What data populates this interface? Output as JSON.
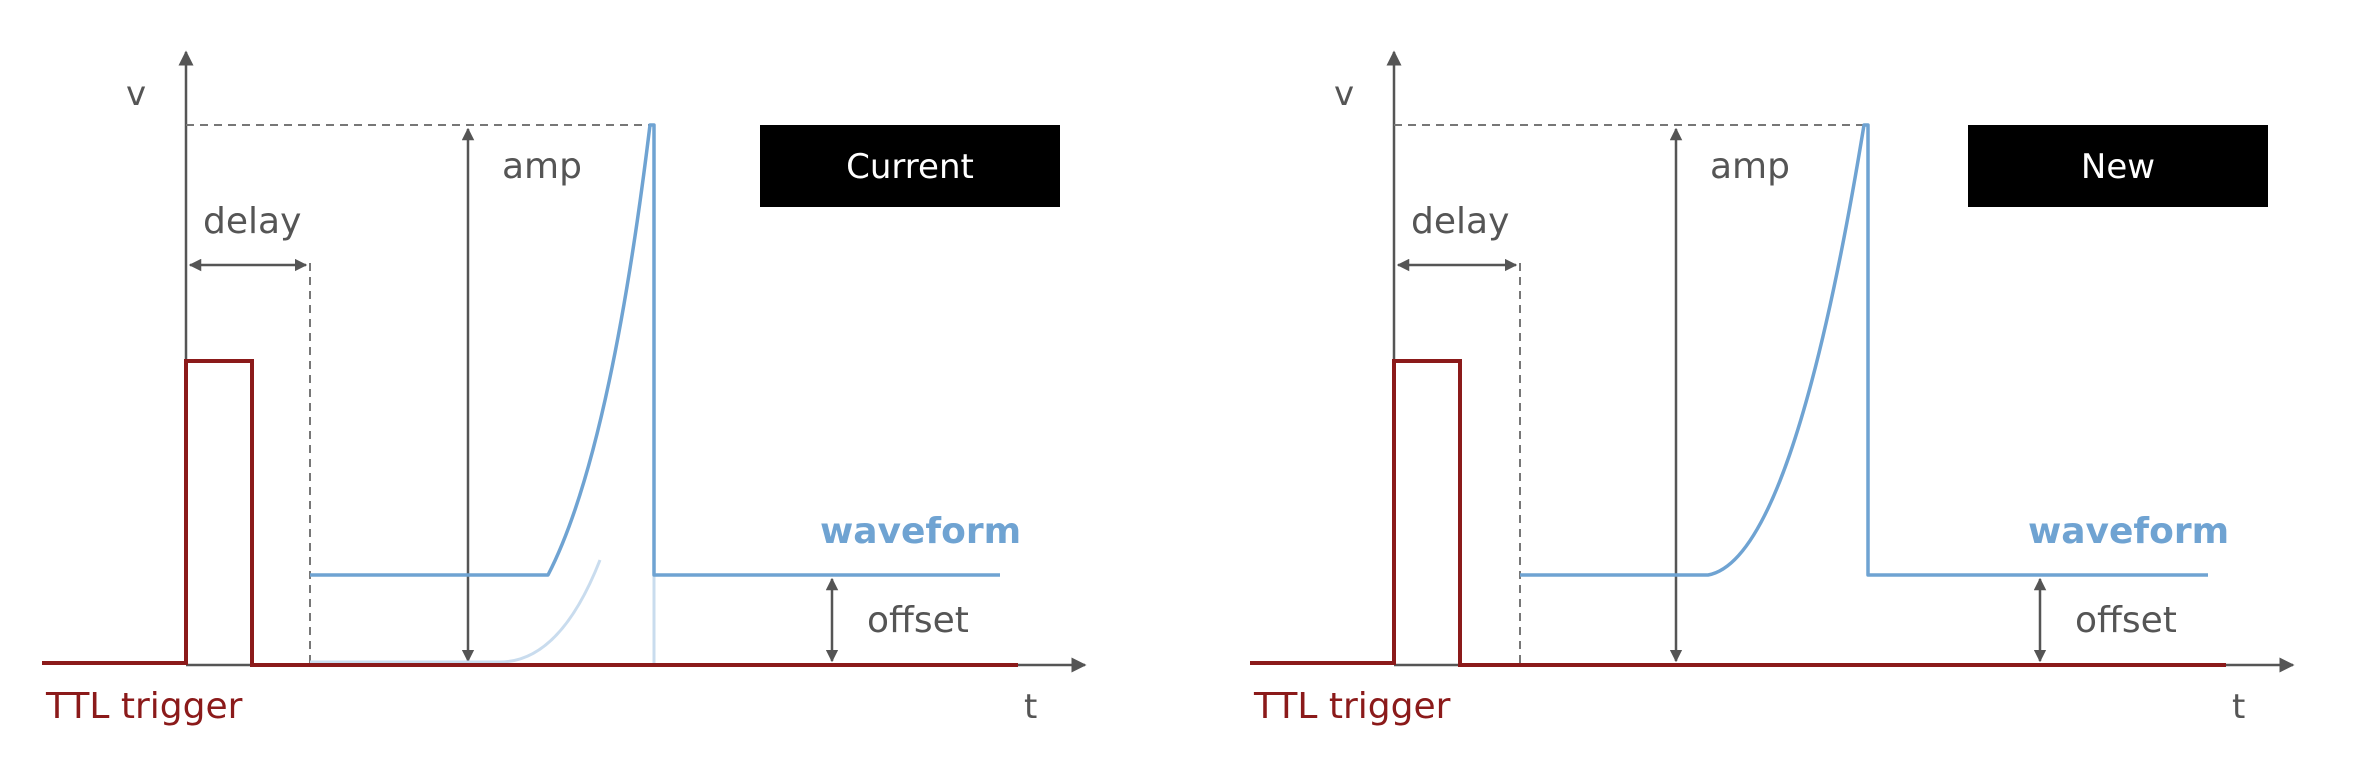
{
  "colors": {
    "axis": "#555555",
    "trigger": "#8b1a1a",
    "waveform": "#6fa3d2",
    "waveform_faded": "#c9dcee",
    "label": "#555555",
    "badge_bg": "#000000",
    "badge_text": "#ffffff"
  },
  "panels": [
    {
      "badge": "Current",
      "axis_y": "v",
      "axis_x": "t",
      "delay_label": "delay",
      "amp_label": "amp",
      "waveform_label": "waveform",
      "offset_label": "offset",
      "trigger_label": "TTL trigger"
    },
    {
      "badge": "New",
      "axis_y": "v",
      "axis_x": "t",
      "delay_label": "delay",
      "amp_label": "amp",
      "waveform_label": "waveform",
      "offset_label": "offset",
      "trigger_label": "TTL trigger"
    }
  ]
}
